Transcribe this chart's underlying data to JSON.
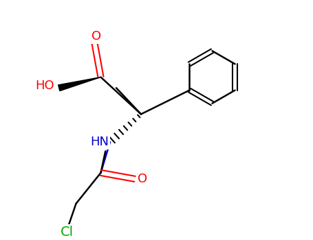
{
  "bg_color": "#ffffff",
  "bond_color": "#000000",
  "atom_colors": {
    "O": "#ff0000",
    "N": "#0000cc",
    "Cl": "#00aa00",
    "C": "#000000",
    "H": "#000000"
  },
  "figsize": [
    4.55,
    3.5
  ],
  "dpi": 100,
  "bond_lw": 1.8,
  "font_size": 13
}
